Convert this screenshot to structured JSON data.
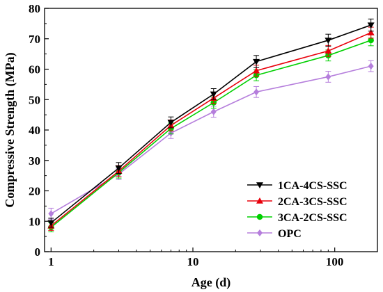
{
  "chart_data": {
    "type": "line",
    "xlabel": "Age (d)",
    "ylabel": "Compressive Strength (MPa)",
    "x_scale": "log",
    "xlim": [
      0.9,
      200
    ],
    "ylim": [
      0,
      80
    ],
    "x_ticks": [
      1,
      10,
      100
    ],
    "x_tick_labels": [
      "1",
      "10",
      "100"
    ],
    "y_ticks": [
      0,
      10,
      20,
      30,
      40,
      50,
      60,
      70,
      80
    ],
    "y_tick_labels": [
      "0",
      "10",
      "20",
      "30",
      "40",
      "50",
      "60",
      "70",
      "80"
    ],
    "x": [
      1,
      3,
      7,
      14,
      28,
      90,
      180
    ],
    "legend_position": "bottom-right",
    "grid": false,
    "series": [
      {
        "name": "1CA-4CS-SSC",
        "color": "#000000",
        "marker": "triangle-down",
        "values": [
          9.5,
          27.5,
          42.5,
          51.8,
          62.5,
          69.5,
          74.5
        ],
        "errors": [
          1.5,
          1.8,
          1.8,
          1.8,
          2.0,
          2.0,
          2.0
        ]
      },
      {
        "name": "2CA-3CS-SSC",
        "color": "#e8000b",
        "marker": "triangle-up",
        "values": [
          8.5,
          26.5,
          41.5,
          50.5,
          59.5,
          66.0,
          72.0
        ],
        "errors": [
          1.5,
          1.8,
          1.8,
          1.8,
          1.8,
          1.8,
          1.8
        ]
      },
      {
        "name": "3CA-2CS-SSC",
        "color": "#00d000",
        "marker": "circle",
        "values": [
          8.0,
          26.0,
          40.5,
          49.0,
          58.0,
          64.5,
          69.5
        ],
        "errors": [
          1.5,
          1.8,
          1.8,
          1.8,
          1.8,
          1.8,
          1.8
        ]
      },
      {
        "name": "OPC",
        "color": "#b57edc",
        "marker": "diamond",
        "values": [
          12.5,
          25.5,
          39.0,
          46.0,
          52.5,
          57.5,
          61.0
        ],
        "errors": [
          1.8,
          1.8,
          1.8,
          1.8,
          1.8,
          1.8,
          1.8
        ]
      }
    ]
  }
}
